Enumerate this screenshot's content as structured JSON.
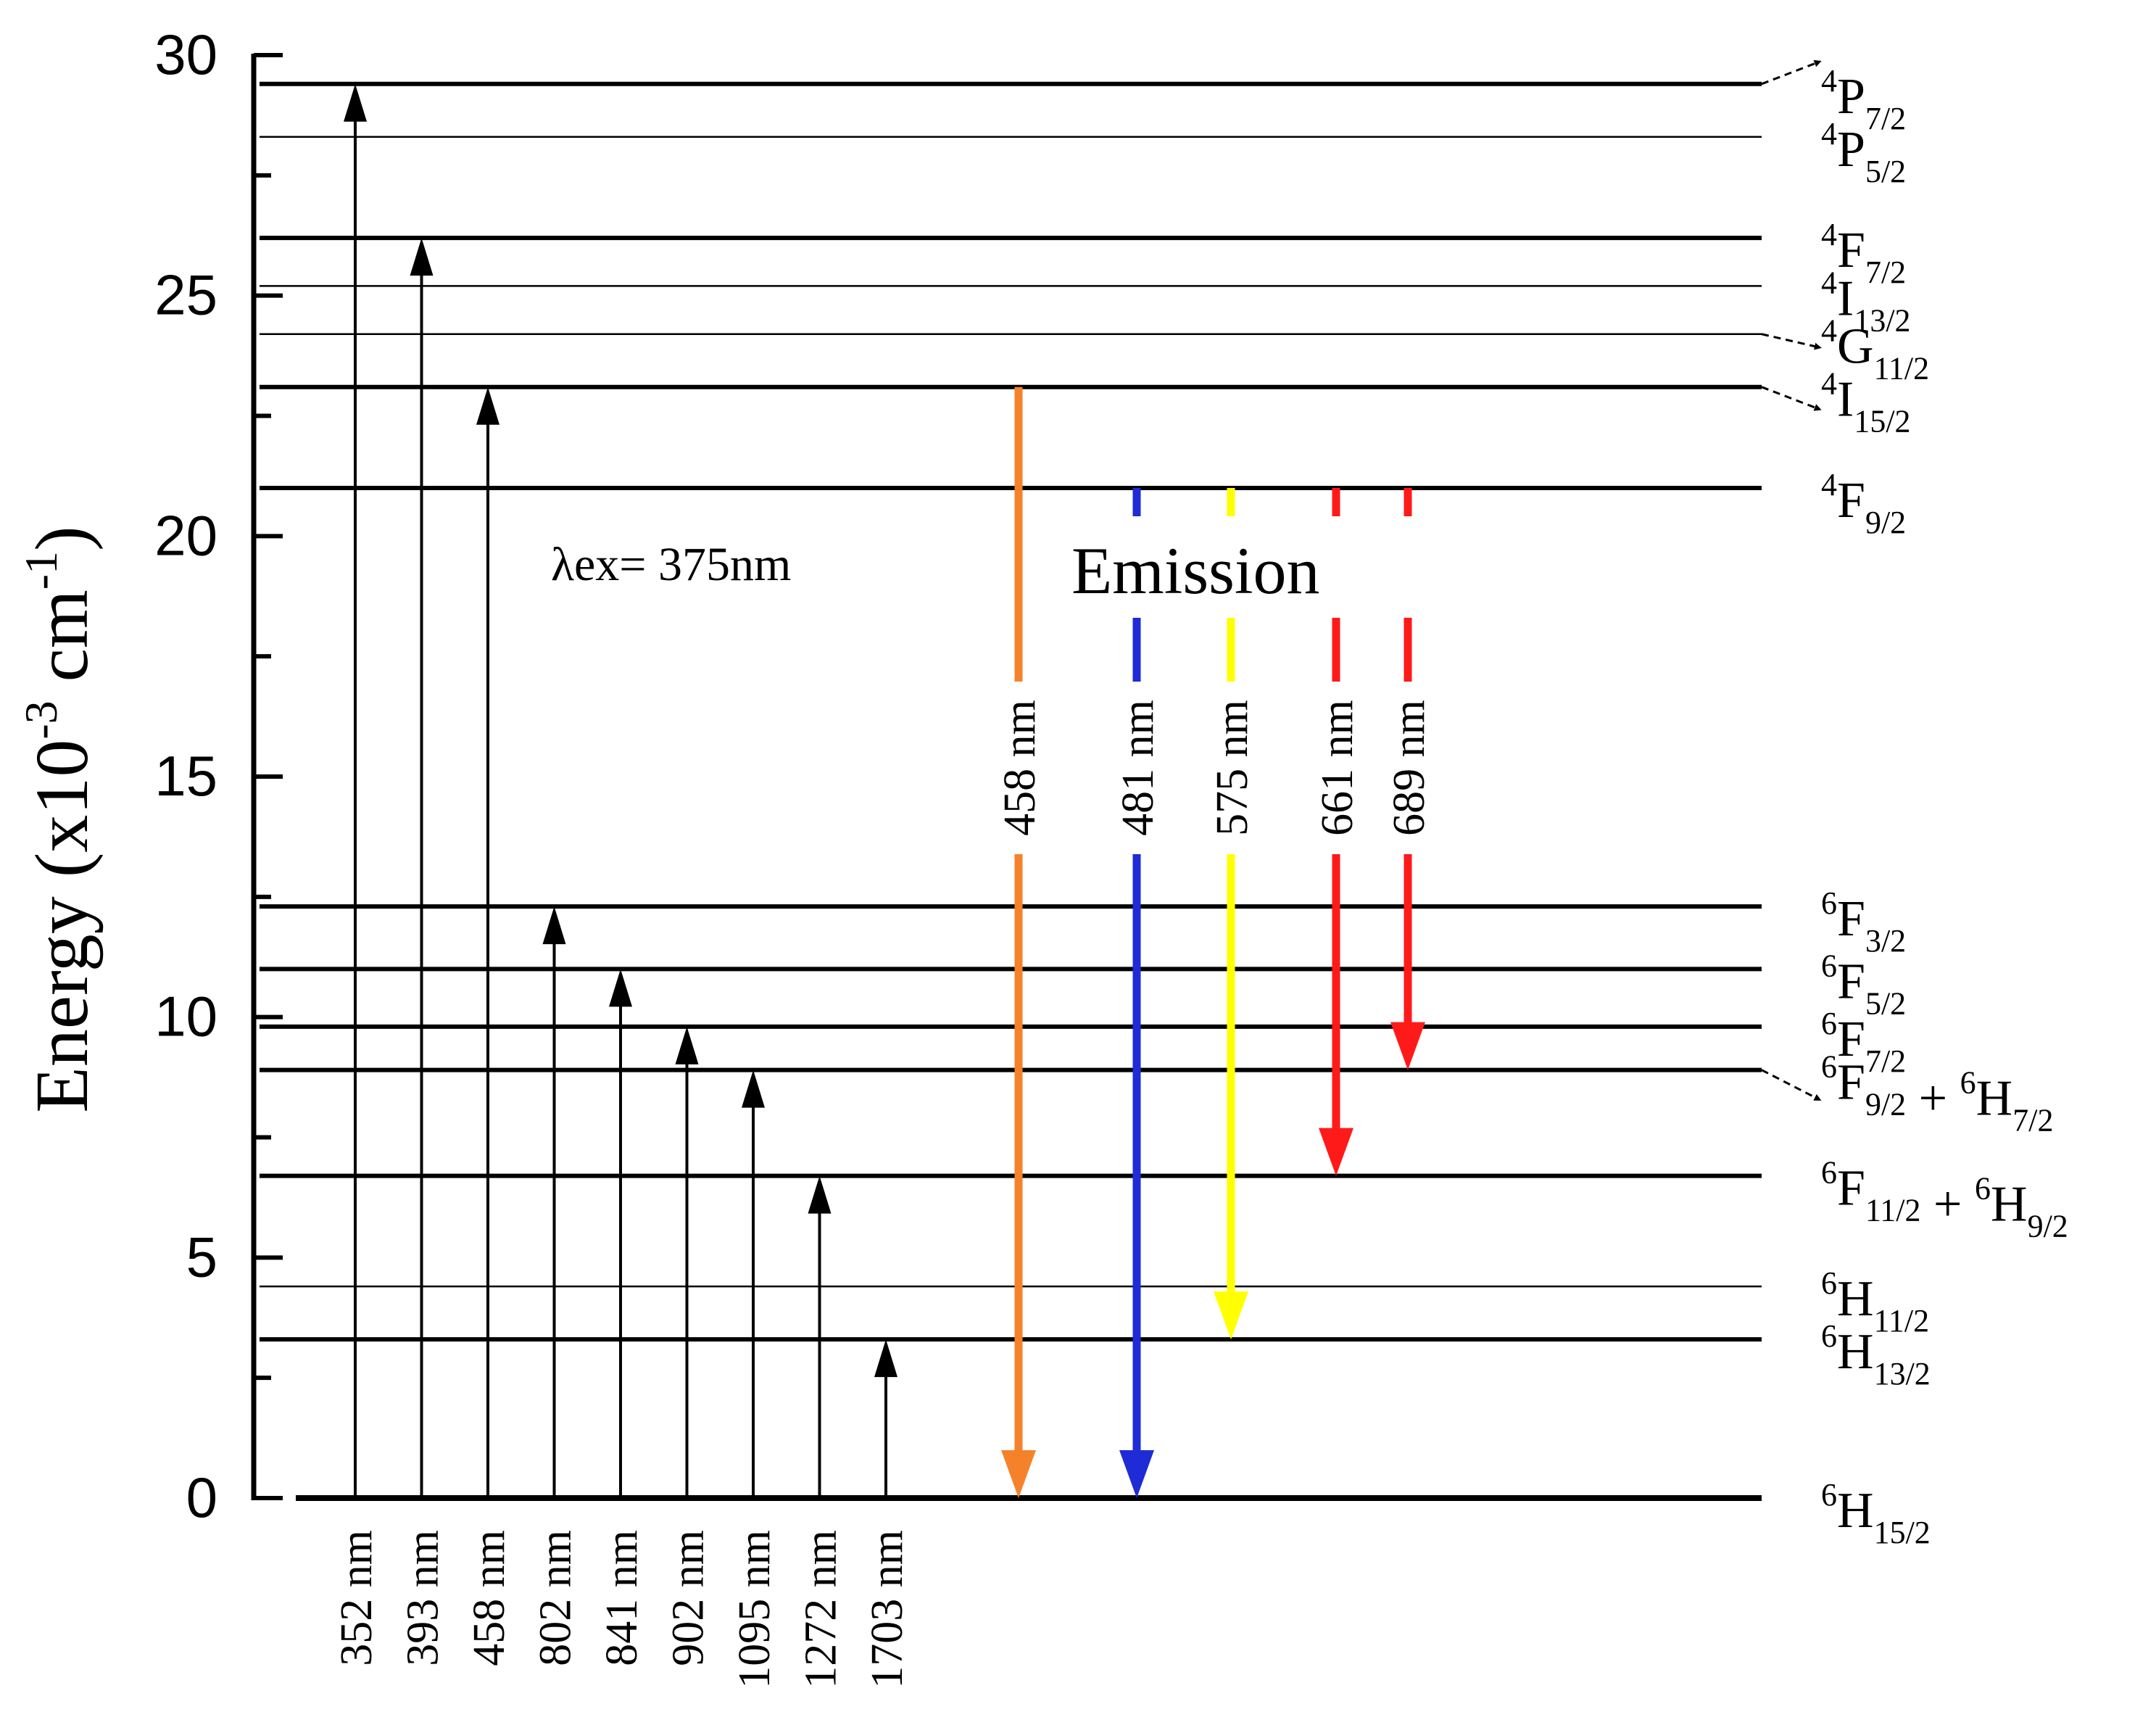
{
  "y_axis": {
    "label": "Energy (x10",
    "label_sup": "-3",
    "label_mid": " cm",
    "label_sup2": "-1",
    "label_end": ")",
    "min": 0,
    "max": 30,
    "ticks": [
      "0",
      "5",
      "10",
      "15",
      "20",
      "25",
      "30"
    ]
  },
  "excitation_label": "λex= 375nm",
  "emission_label": "Emission",
  "levels": [
    {
      "id": "6H15-2",
      "energy": 0,
      "weight": "thick",
      "term": [
        {
          "sup": "6",
          "L": "H",
          "sub": "15/2"
        }
      ],
      "plus": false
    },
    {
      "id": "6H13-2",
      "energy": 3.3,
      "weight": "thick",
      "term": [
        {
          "sup": "6",
          "L": "H",
          "sub": "13/2"
        }
      ],
      "plus": false
    },
    {
      "id": "6H11-2",
      "energy": 4.4,
      "weight": "thin",
      "term": [
        {
          "sup": "6",
          "L": "H",
          "sub": "11/2"
        }
      ],
      "plus": false
    },
    {
      "id": "6F11-2",
      "energy": 6.7,
      "weight": "thick",
      "term": [
        {
          "sup": "6",
          "L": "F",
          "sub": "11/2"
        },
        {
          "sup": "6",
          "L": "H",
          "sub": "9/2"
        }
      ],
      "plus": true
    },
    {
      "id": "6F9-2",
      "energy": 8.9,
      "weight": "thick",
      "term": [
        {
          "sup": "6",
          "L": "F",
          "sub": "9/2"
        },
        {
          "sup": "6",
          "L": "H",
          "sub": "7/2"
        }
      ],
      "plus": true
    },
    {
      "id": "6F7-2",
      "energy": 9.8,
      "weight": "thick",
      "term": [
        {
          "sup": "6",
          "L": "F",
          "sub": "7/2"
        }
      ],
      "plus": false
    },
    {
      "id": "6F5-2",
      "energy": 11.0,
      "weight": "thick",
      "term": [
        {
          "sup": "6",
          "L": "F",
          "sub": "5/2"
        }
      ],
      "plus": false
    },
    {
      "id": "6F3-2",
      "energy": 12.3,
      "weight": "thick",
      "term": [
        {
          "sup": "6",
          "L": "F",
          "sub": "3/2"
        }
      ],
      "plus": false
    },
    {
      "id": "4F9-2",
      "energy": 21.0,
      "weight": "thick",
      "term": [
        {
          "sup": "4",
          "L": "F",
          "sub": "9/2"
        }
      ],
      "plus": false
    },
    {
      "id": "4I15-2",
      "energy": 23.1,
      "weight": "thick",
      "term": [
        {
          "sup": "4",
          "L": "I",
          "sub": "15/2"
        }
      ],
      "plus": false
    },
    {
      "id": "4G11-2",
      "energy": 24.2,
      "weight": "thin",
      "term": [
        {
          "sup": "4",
          "L": "G",
          "sub": "11/2"
        }
      ],
      "plus": false
    },
    {
      "id": "4I13-2",
      "energy": 25.2,
      "weight": "thin",
      "term": [
        {
          "sup": "4",
          "L": "I",
          "sub": "13/2"
        }
      ],
      "plus": false
    },
    {
      "id": "4F7-2",
      "energy": 26.2,
      "weight": "thick",
      "term": [
        {
          "sup": "4",
          "L": "F",
          "sub": "7/2"
        }
      ],
      "plus": false
    },
    {
      "id": "4P5-2",
      "energy": 28.3,
      "weight": "thin",
      "term": [
        {
          "sup": "4",
          "L": "P",
          "sub": "5/2"
        }
      ],
      "plus": false
    },
    {
      "id": "4P7-2",
      "energy": 29.4,
      "weight": "thick",
      "term": [
        {
          "sup": "4",
          "L": "P",
          "sub": "7/2"
        }
      ],
      "plus": false
    }
  ],
  "absorption": [
    {
      "label": "352 nm",
      "to_energy": 29.4
    },
    {
      "label": "393 nm",
      "to_energy": 26.2
    },
    {
      "label": "458 nm",
      "to_energy": 23.1
    },
    {
      "label": "802 nm",
      "to_energy": 12.3
    },
    {
      "label": "841 nm",
      "to_energy": 11.0
    },
    {
      "label": "902 nm",
      "to_energy": 9.8
    },
    {
      "label": "1095 nm",
      "to_energy": 8.9
    },
    {
      "label": "1272 nm",
      "to_energy": 6.7
    },
    {
      "label": "1703 nm",
      "to_energy": 3.3
    }
  ],
  "emission": [
    {
      "label": "458 nm",
      "from_energy": 23.1,
      "to_energy": 0,
      "color": "#f5822a"
    },
    {
      "label": "481 nm",
      "from_energy": 21.0,
      "to_energy": 0,
      "color": "#1e2bd6"
    },
    {
      "label": "575 nm",
      "from_energy": 21.0,
      "to_energy": 3.3,
      "color": "#ffff00"
    },
    {
      "label": "661 nm",
      "from_energy": 21.0,
      "to_energy": 6.7,
      "color": "#ff1a1a"
    },
    {
      "label": "689 nm",
      "from_energy": 21.0,
      "to_energy": 8.9,
      "color": "#ff1a1a"
    }
  ]
}
